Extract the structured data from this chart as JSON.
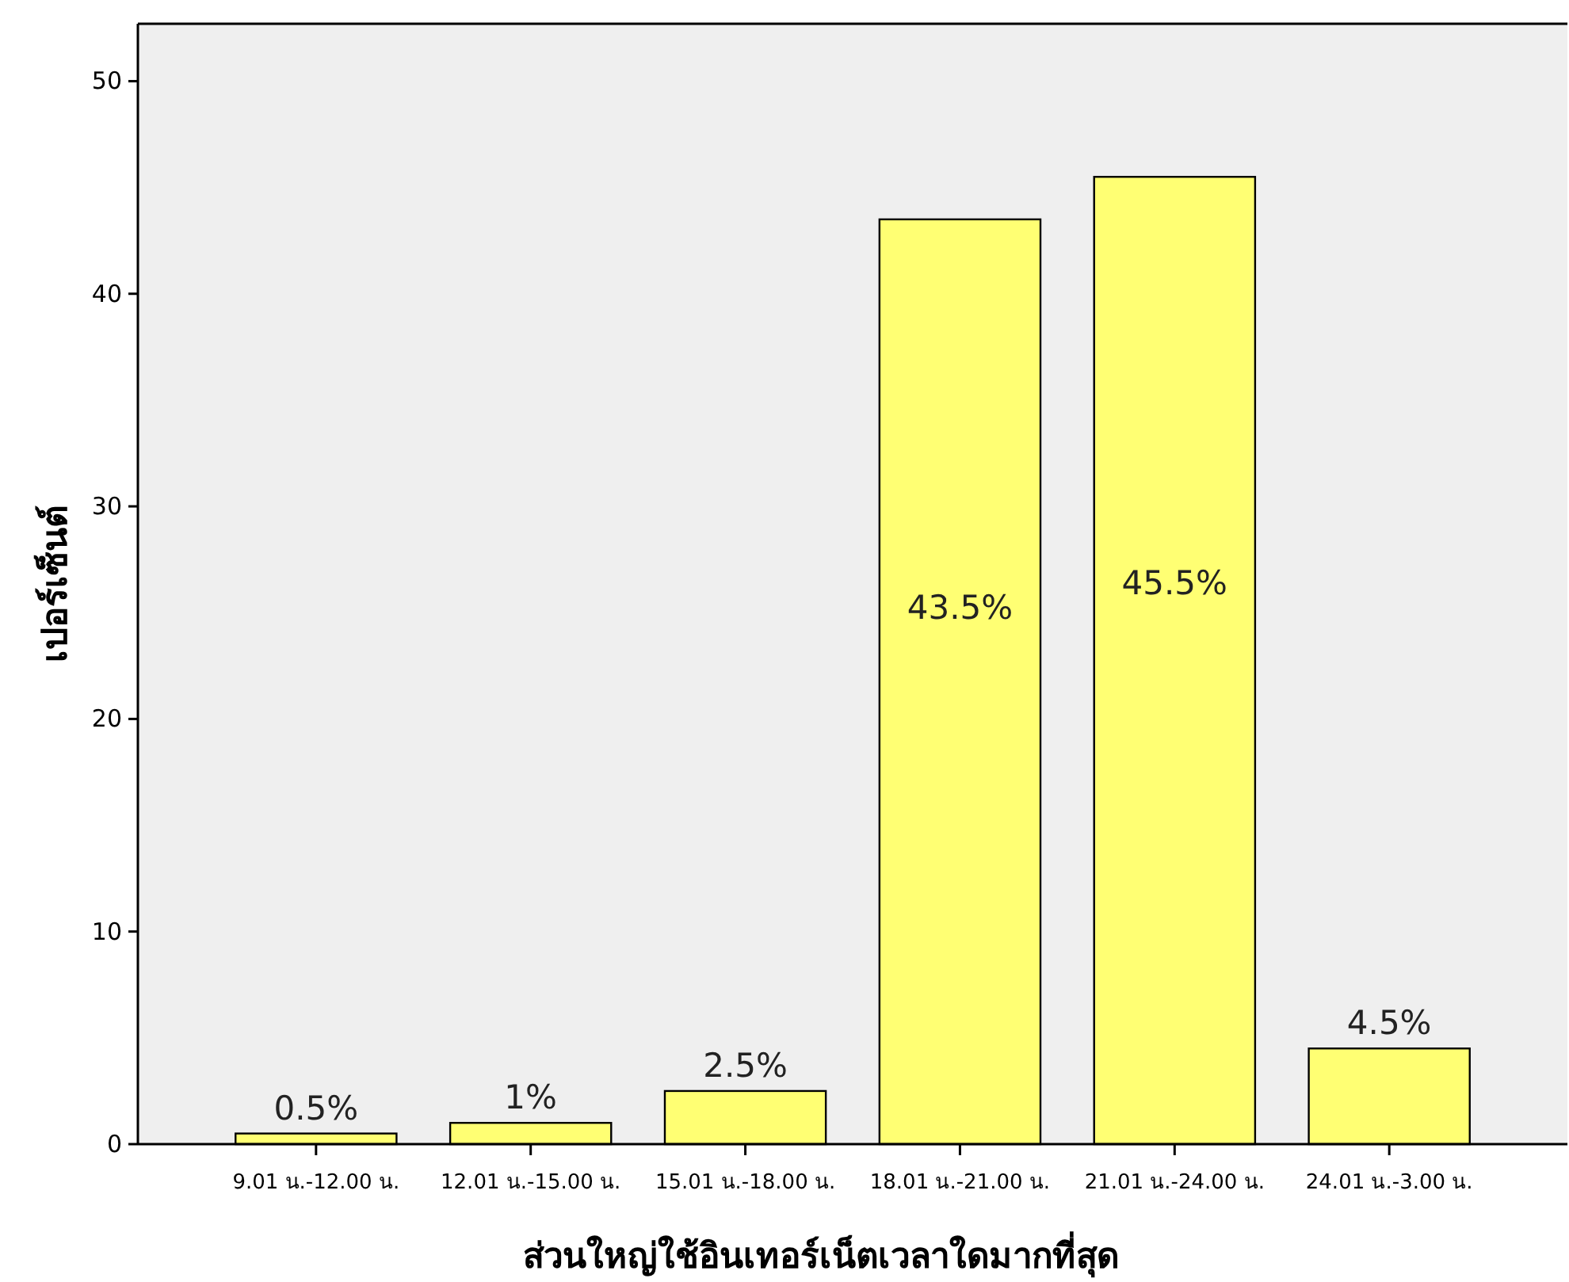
{
  "chart_data": {
    "type": "bar",
    "xlabel": "ส่วนใหญ่ใช้อินเทอร์เน็ตเวลาใดมากที่สุด",
    "ylabel": "เปอร์เซ็นต์",
    "categories": [
      "9.01 น.-12.00 น.",
      "12.01 น.-15.00 น.",
      "15.01 น.-18.00 น.",
      "18.01 น.-21.00 น.",
      "21.01 น.-24.00 น.",
      "24.01 น.-3.00 น."
    ],
    "values": [
      0.5,
      1,
      2.5,
      43.5,
      45.5,
      4.5
    ],
    "value_labels": [
      "0.5%",
      "1%",
      "2.5%",
      "43.5%",
      "45.5%",
      "4.5%"
    ],
    "color": "#ffff73",
    "ylim": [
      0,
      52.7
    ],
    "yticks": [
      0,
      10,
      20,
      30,
      40,
      50
    ],
    "grid": false
  }
}
